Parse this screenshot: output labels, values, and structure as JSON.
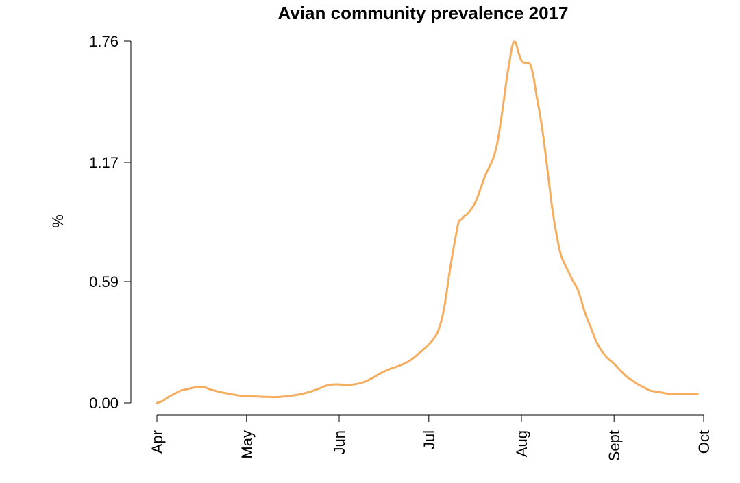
{
  "chart_data": {
    "type": "line",
    "title": "Avian community prevalence 2017",
    "xlabel": "",
    "ylabel": "%",
    "x_ticks": [
      "Apr",
      "May",
      "Jun",
      "Jul",
      "Aug",
      "Sept",
      "Oct"
    ],
    "x_tick_dates": [
      "2017-04-01",
      "2017-05-01",
      "2017-06-01",
      "2017-07-01",
      "2017-08-01",
      "2017-09-01",
      "2017-10-01"
    ],
    "y_ticks": [
      "0.00",
      "0.59",
      "1.17",
      "1.76"
    ],
    "y_tick_values": [
      0.0,
      0.59,
      1.17,
      1.76
    ],
    "xlim": [
      "2017-04-01",
      "2017-10-01"
    ],
    "ylim": [
      0.0,
      1.76
    ],
    "grid": false,
    "colors": {
      "line": "#F6AD5F"
    },
    "series": [
      {
        "x": [
          "2017-04-01",
          "2017-04-03",
          "2017-04-05",
          "2017-04-07",
          "2017-04-09",
          "2017-04-11",
          "2017-04-13",
          "2017-04-15",
          "2017-04-17",
          "2017-04-19",
          "2017-04-21",
          "2017-04-23",
          "2017-04-26",
          "2017-04-29",
          "2017-05-02",
          "2017-05-06",
          "2017-05-10",
          "2017-05-13",
          "2017-05-16",
          "2017-05-19",
          "2017-05-22",
          "2017-05-25",
          "2017-05-28",
          "2017-05-31",
          "2017-06-03",
          "2017-06-06",
          "2017-06-09",
          "2017-06-12",
          "2017-06-15",
          "2017-06-18",
          "2017-06-21",
          "2017-06-24",
          "2017-06-26",
          "2017-06-28",
          "2017-06-30",
          "2017-07-01",
          "2017-07-02",
          "2017-07-03",
          "2017-07-04",
          "2017-07-05",
          "2017-07-06",
          "2017-07-07",
          "2017-07-08",
          "2017-07-09",
          "2017-07-10",
          "2017-07-11",
          "2017-07-12",
          "2017-07-13",
          "2017-07-14",
          "2017-07-16",
          "2017-07-17",
          "2017-07-18",
          "2017-07-19",
          "2017-07-20",
          "2017-07-21",
          "2017-07-22",
          "2017-07-23",
          "2017-07-24",
          "2017-07-25",
          "2017-07-26",
          "2017-07-27",
          "2017-07-28",
          "2017-07-29",
          "2017-07-30",
          "2017-07-31",
          "2017-08-01",
          "2017-08-02",
          "2017-08-03",
          "2017-08-04",
          "2017-08-05",
          "2017-08-06",
          "2017-08-07",
          "2017-08-08",
          "2017-08-09",
          "2017-08-10",
          "2017-08-11",
          "2017-08-12",
          "2017-08-13",
          "2017-08-14",
          "2017-08-15",
          "2017-08-16",
          "2017-08-17",
          "2017-08-18",
          "2017-08-19",
          "2017-08-20",
          "2017-08-21",
          "2017-08-22",
          "2017-08-23",
          "2017-08-24",
          "2017-08-26",
          "2017-08-28",
          "2017-08-30",
          "2017-09-01",
          "2017-09-03",
          "2017-09-05",
          "2017-09-07",
          "2017-09-09",
          "2017-09-11",
          "2017-09-13",
          "2017-09-15",
          "2017-09-17",
          "2017-09-19",
          "2017-09-21",
          "2017-09-23",
          "2017-09-25",
          "2017-09-27",
          "2017-09-29"
        ],
        "values": [
          0.0,
          0.01,
          0.03,
          0.045,
          0.06,
          0.066,
          0.073,
          0.077,
          0.075,
          0.065,
          0.057,
          0.05,
          0.042,
          0.035,
          0.032,
          0.03,
          0.028,
          0.03,
          0.035,
          0.042,
          0.053,
          0.068,
          0.085,
          0.09,
          0.088,
          0.09,
          0.1,
          0.12,
          0.145,
          0.165,
          0.18,
          0.2,
          0.22,
          0.245,
          0.27,
          0.285,
          0.3,
          0.32,
          0.345,
          0.39,
          0.45,
          0.54,
          0.64,
          0.73,
          0.81,
          0.88,
          0.895,
          0.91,
          0.92,
          0.96,
          0.99,
          1.03,
          1.07,
          1.11,
          1.14,
          1.17,
          1.21,
          1.27,
          1.36,
          1.46,
          1.57,
          1.66,
          1.74,
          1.755,
          1.705,
          1.665,
          1.655,
          1.655,
          1.645,
          1.59,
          1.5,
          1.42,
          1.33,
          1.22,
          1.1,
          0.98,
          0.88,
          0.8,
          0.73,
          0.69,
          0.66,
          0.63,
          0.6,
          0.575,
          0.545,
          0.5,
          0.45,
          0.41,
          0.375,
          0.3,
          0.25,
          0.215,
          0.19,
          0.16,
          0.13,
          0.11,
          0.09,
          0.075,
          0.06,
          0.055,
          0.05,
          0.045,
          0.045,
          0.045,
          0.045,
          0.045,
          0.045
        ]
      }
    ]
  }
}
